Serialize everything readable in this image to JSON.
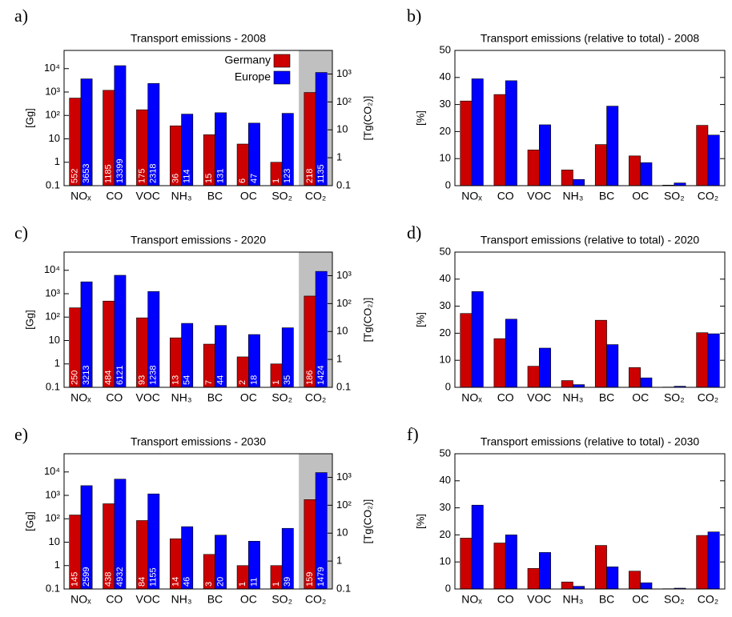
{
  "chart_data": [
    {
      "type": "bar",
      "panel_label": "a)",
      "title": "Transport emissions - 2008",
      "y_label": "[Gg]",
      "y2_label": "[Tg(CO₂)]",
      "log_scale": true,
      "legend": true,
      "data_labels": true,
      "categories": [
        "NOₓ",
        "CO",
        "VOC",
        "NH₃",
        "BC",
        "OC",
        "SO₂",
        "CO₂"
      ],
      "y2_categories": [
        "CO₂"
      ],
      "ylim": [
        0.1,
        60000
      ],
      "yticks": [
        0.1,
        1,
        10,
        {
          "value": 100,
          "label": "10²"
        },
        {
          "value": 1000,
          "label": "10³"
        },
        {
          "value": 10000,
          "label": "10⁴"
        }
      ],
      "y2lim": [
        0.1,
        7000
      ],
      "y2ticks": [
        0.1,
        1,
        10,
        {
          "value": 100,
          "label": "10²"
        },
        {
          "value": 1000,
          "label": "10³"
        }
      ],
      "series": [
        {
          "name": "Germany",
          "color": "#cc0000",
          "values": [
            552,
            1185,
            175,
            36,
            15,
            6,
            1,
            218
          ]
        },
        {
          "name": "Europe",
          "color": "#0000ff",
          "values": [
            3653,
            13399,
            2318,
            114,
            131,
            47,
            123,
            1135
          ]
        }
      ]
    },
    {
      "type": "bar",
      "panel_label": "b)",
      "title": "Transport emissions (relative to total) - 2008",
      "y_label": "[%]",
      "log_scale": false,
      "legend": false,
      "data_labels": false,
      "categories": [
        "NOₓ",
        "CO",
        "VOC",
        "NH₃",
        "BC",
        "OC",
        "SO₂",
        "CO₂"
      ],
      "ylim": [
        0,
        50
      ],
      "yticks": [
        0,
        10,
        20,
        30,
        40,
        50
      ],
      "series": [
        {
          "name": "Germany",
          "color": "#cc0000",
          "values": [
            31.3,
            33.7,
            13.2,
            5.8,
            15.2,
            11,
            0.2,
            22.3
          ]
        },
        {
          "name": "Europe",
          "color": "#0000ff",
          "values": [
            39.5,
            38.8,
            22.5,
            2.3,
            29.4,
            8.5,
            1,
            18.7
          ]
        }
      ]
    },
    {
      "type": "bar",
      "panel_label": "c)",
      "title": "Transport emissions - 2020",
      "y_label": "[Gg]",
      "y2_label": "[Tg(CO₂)]",
      "log_scale": true,
      "legend": false,
      "data_labels": true,
      "categories": [
        "NOₓ",
        "CO",
        "VOC",
        "NH₃",
        "BC",
        "OC",
        "SO₂",
        "CO₂"
      ],
      "y2_categories": [
        "CO₂"
      ],
      "ylim": [
        0.1,
        60000
      ],
      "yticks": [
        0.1,
        1,
        10,
        {
          "value": 100,
          "label": "10²"
        },
        {
          "value": 1000,
          "label": "10³"
        },
        {
          "value": 10000,
          "label": "10⁴"
        }
      ],
      "y2lim": [
        0.1,
        7000
      ],
      "y2ticks": [
        0.1,
        1,
        10,
        {
          "value": 100,
          "label": "10²"
        },
        {
          "value": 1000,
          "label": "10³"
        }
      ],
      "series": [
        {
          "name": "Germany",
          "color": "#cc0000",
          "values": [
            250,
            484,
            93,
            13,
            7,
            2,
            1,
            186
          ]
        },
        {
          "name": "Europe",
          "color": "#0000ff",
          "values": [
            3213,
            6121,
            1238,
            54,
            44,
            18,
            35,
            1424
          ]
        }
      ]
    },
    {
      "type": "bar",
      "panel_label": "d)",
      "title": "Transport emissions (relative to total) - 2020",
      "y_label": "[%]",
      "log_scale": false,
      "legend": false,
      "data_labels": false,
      "categories": [
        "NOₓ",
        "CO",
        "VOC",
        "NH₃",
        "BC",
        "OC",
        "SO₂",
        "CO₂"
      ],
      "ylim": [
        0,
        50
      ],
      "yticks": [
        0,
        10,
        20,
        30,
        40,
        50
      ],
      "series": [
        {
          "name": "Germany",
          "color": "#cc0000",
          "values": [
            27.3,
            18,
            7.8,
            2.5,
            24.8,
            7.3,
            0.1,
            20.2
          ]
        },
        {
          "name": "Europe",
          "color": "#0000ff",
          "values": [
            35.4,
            25.2,
            14.5,
            1,
            15.8,
            3.5,
            0.4,
            19.8
          ]
        }
      ]
    },
    {
      "type": "bar",
      "panel_label": "e)",
      "title": "Transport emissions - 2030",
      "y_label": "[Gg]",
      "y2_label": "[Tg(CO₂)]",
      "log_scale": true,
      "legend": false,
      "data_labels": true,
      "categories": [
        "NOₓ",
        "CO",
        "VOC",
        "NH₃",
        "BC",
        "OC",
        "SO₂",
        "CO₂"
      ],
      "y2_categories": [
        "CO₂"
      ],
      "ylim": [
        0.1,
        60000
      ],
      "yticks": [
        0.1,
        1,
        10,
        {
          "value": 100,
          "label": "10²"
        },
        {
          "value": 1000,
          "label": "10³"
        },
        {
          "value": 10000,
          "label": "10⁴"
        }
      ],
      "y2lim": [
        0.1,
        7000
      ],
      "y2ticks": [
        0.1,
        1,
        10,
        {
          "value": 100,
          "label": "10²"
        },
        {
          "value": 1000,
          "label": "10³"
        }
      ],
      "series": [
        {
          "name": "Germany",
          "color": "#cc0000",
          "values": [
            145,
            438,
            84,
            14,
            3,
            1,
            1,
            159
          ]
        },
        {
          "name": "Europe",
          "color": "#0000ff",
          "values": [
            2599,
            4932,
            1155,
            46,
            20,
            11,
            39,
            1479
          ]
        }
      ]
    },
    {
      "type": "bar",
      "panel_label": "f)",
      "title": "Transport emissions (relative to total) - 2030",
      "y_label": "[%]",
      "log_scale": false,
      "legend": false,
      "data_labels": false,
      "categories": [
        "NOₓ",
        "CO",
        "VOC",
        "NH₃",
        "BC",
        "OC",
        "SO₂",
        "CO₂"
      ],
      "ylim": [
        0,
        50
      ],
      "yticks": [
        0,
        10,
        20,
        30,
        40,
        50
      ],
      "series": [
        {
          "name": "Germany",
          "color": "#cc0000",
          "values": [
            18.8,
            17,
            7.6,
            2.6,
            16.1,
            6.6,
            0.1,
            19.8
          ]
        },
        {
          "name": "Europe",
          "color": "#0000ff",
          "values": [
            31,
            20,
            13.5,
            1,
            8.2,
            2.3,
            0.3,
            21.1
          ]
        }
      ]
    }
  ]
}
